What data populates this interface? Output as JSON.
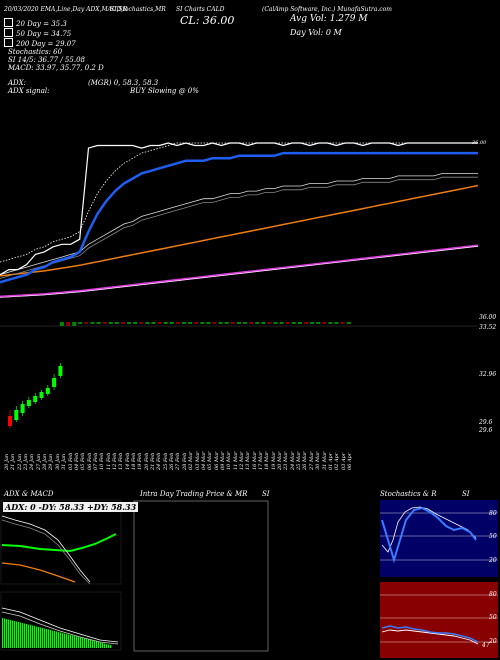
{
  "header": {
    "line1": [
      {
        "text": "20/03/2020  EMA,Line,Day  ADX,MACD,R",
        "x": 0
      },
      {
        "text": "SI,Stochastics,MR",
        "x": 0
      },
      {
        "text": "SI Charts CALD",
        "x": 0
      },
      {
        "text": "(CalAmp Software, Inc.)  MunafaSutra.com",
        "x": 0
      }
    ],
    "price_label": "CL: 36.00",
    "avg_vol_label": "Avg Vol: 1.279 M",
    "day_vol_label": "Day Vol: 0  M",
    "ema_legend": [
      {
        "label": "20  Day = 35.3",
        "color": "#ffffff"
      },
      {
        "label": "50  Day = 34.75",
        "color": "#ffffff"
      },
      {
        "label": "200  Day = 29.07",
        "color": "#ffffff"
      }
    ],
    "stoch_line": "Stochastics: 60",
    "si_line": "SI 14/5: 36.77 / 55.08",
    "macd_line": "MACD: 33.97,  35.77,  0.2  D",
    "adx_line": "ADX:",
    "adx_values": "(MGR) 0,  58.3,  58.3",
    "adx_signal_label": "ADX  signal:",
    "buy_signal": "BUY Slowing @ 0%"
  },
  "price_axis": {
    "top_label": "36.00",
    "mid_label": "33.52",
    "low1": "32.96",
    "low2": "29.6",
    "low3": "29.6"
  },
  "date_labels": [
    "20 Jan",
    "21 Jan",
    "22 Jan",
    "23 Jan",
    "24 Jan",
    "27 Jan",
    "28 Jan",
    "29 Jan",
    "30 Jan",
    "31 Jan",
    "03 Feb",
    "04 Feb",
    "05 Feb",
    "06 Feb",
    "07 Feb",
    "10 Feb",
    "11 Feb",
    "12 Feb",
    "13 Feb",
    "14 Feb",
    "18 Feb",
    "19 Feb",
    "20 Feb",
    "21 Feb",
    "24 Feb",
    "25 Feb",
    "26 Feb",
    "27 Feb",
    "28 Feb",
    "02 Mar",
    "03 Mar",
    "04 Mar",
    "05 Mar",
    "06 Mar",
    "09 Mar",
    "10 Mar",
    "11 Mar",
    "12 Mar",
    "13 Mar",
    "16 Mar",
    "17 Mar",
    "18 Mar",
    "19 Mar",
    "20 Mar",
    "23 Mar",
    "24 Mar",
    "25 Mar",
    "26 Mar",
    "27 Mar",
    "30 Mar",
    "31 Mar",
    "01 Apr",
    "02 Apr",
    "03 Apr",
    "06 Apr"
  ],
  "panels": {
    "adx_title": "ADX  & MACD",
    "adx_box_text": "ADX: 0   -DY: 58.33  +DY: 58.33",
    "intra_title": "Intra  Day Trading Price  & MR",
    "intra_si": "SI",
    "stoch_title": "Stochastics & R",
    "stoch_si": "SI",
    "stoch_levels": [
      "80",
      "50",
      "20"
    ],
    "si_levels": [
      "80",
      "50",
      "20"
    ],
    "si_value": "47"
  },
  "colors": {
    "ema20": "#ffffff",
    "ema_blue": "#1e5ef0",
    "ema_white": "#cccccc",
    "ema_orange": "#f07e10",
    "ema_magenta": "#e040e0",
    "stoch_bg": "#000066",
    "si_bg": "#880000",
    "green": "#00ff00",
    "red": "#ff0000"
  },
  "chart_data": {
    "type": "line",
    "title": "CALD",
    "series": [
      {
        "name": "Price",
        "values": [
          10,
          12,
          12,
          14,
          18,
          19,
          21,
          22,
          22,
          24,
          60,
          61,
          61,
          61,
          61,
          61,
          60,
          61,
          61,
          62,
          61,
          62,
          61,
          61,
          62,
          61,
          62,
          62,
          61,
          62,
          62,
          62,
          61,
          62,
          62,
          61,
          62,
          62,
          61,
          62,
          62,
          61,
          62,
          62,
          62,
          61,
          62,
          62,
          62,
          62,
          62,
          62,
          62,
          62,
          62
        ]
      },
      {
        "name": "20 Day",
        "values": [
          10,
          11,
          12,
          13,
          15,
          16,
          18,
          19,
          20,
          22,
          30,
          37,
          42,
          46,
          49,
          51,
          53,
          54,
          55,
          56,
          57,
          58,
          58,
          58,
          59,
          59,
          59,
          60,
          60,
          60,
          60,
          60,
          61,
          61,
          61,
          61,
          61,
          61,
          61,
          61,
          61,
          61,
          61,
          61,
          61,
          61,
          61,
          61,
          61,
          61,
          61,
          61,
          61,
          61,
          61
        ]
      },
      {
        "name": "50 Day",
        "values": [
          8,
          9,
          10,
          11,
          12,
          13,
          14,
          15,
          16,
          17,
          20,
          22,
          24,
          26,
          28,
          29,
          31,
          32,
          33,
          34,
          35,
          36,
          37,
          38,
          38,
          39,
          40,
          40,
          41,
          41,
          42,
          42,
          43,
          43,
          43,
          44,
          44,
          44,
          45,
          45,
          45,
          46,
          46,
          46,
          46,
          47,
          47,
          47,
          47,
          47,
          48,
          48,
          48,
          48,
          48
        ]
      },
      {
        "name": "200 Day",
        "values": [
          1,
          1.2,
          1.4,
          1.6,
          1.8,
          2,
          2.3,
          2.6,
          2.9,
          3.2,
          3.6,
          4,
          4.4,
          4.8,
          5.2,
          5.6,
          6,
          6.4,
          6.8,
          7.2,
          7.6,
          8,
          8.4,
          8.8,
          9.2,
          9.6,
          10,
          10.4,
          10.8,
          11.2,
          11.6,
          12,
          12.4,
          12.8,
          13.2,
          13.6,
          14,
          14.4,
          14.8,
          15.2,
          15.6,
          16,
          16.4,
          16.8,
          17.2,
          17.6,
          18,
          18.4,
          18.8,
          19.2,
          19.6,
          20,
          20.4,
          20.8,
          21.2
        ]
      }
    ]
  }
}
